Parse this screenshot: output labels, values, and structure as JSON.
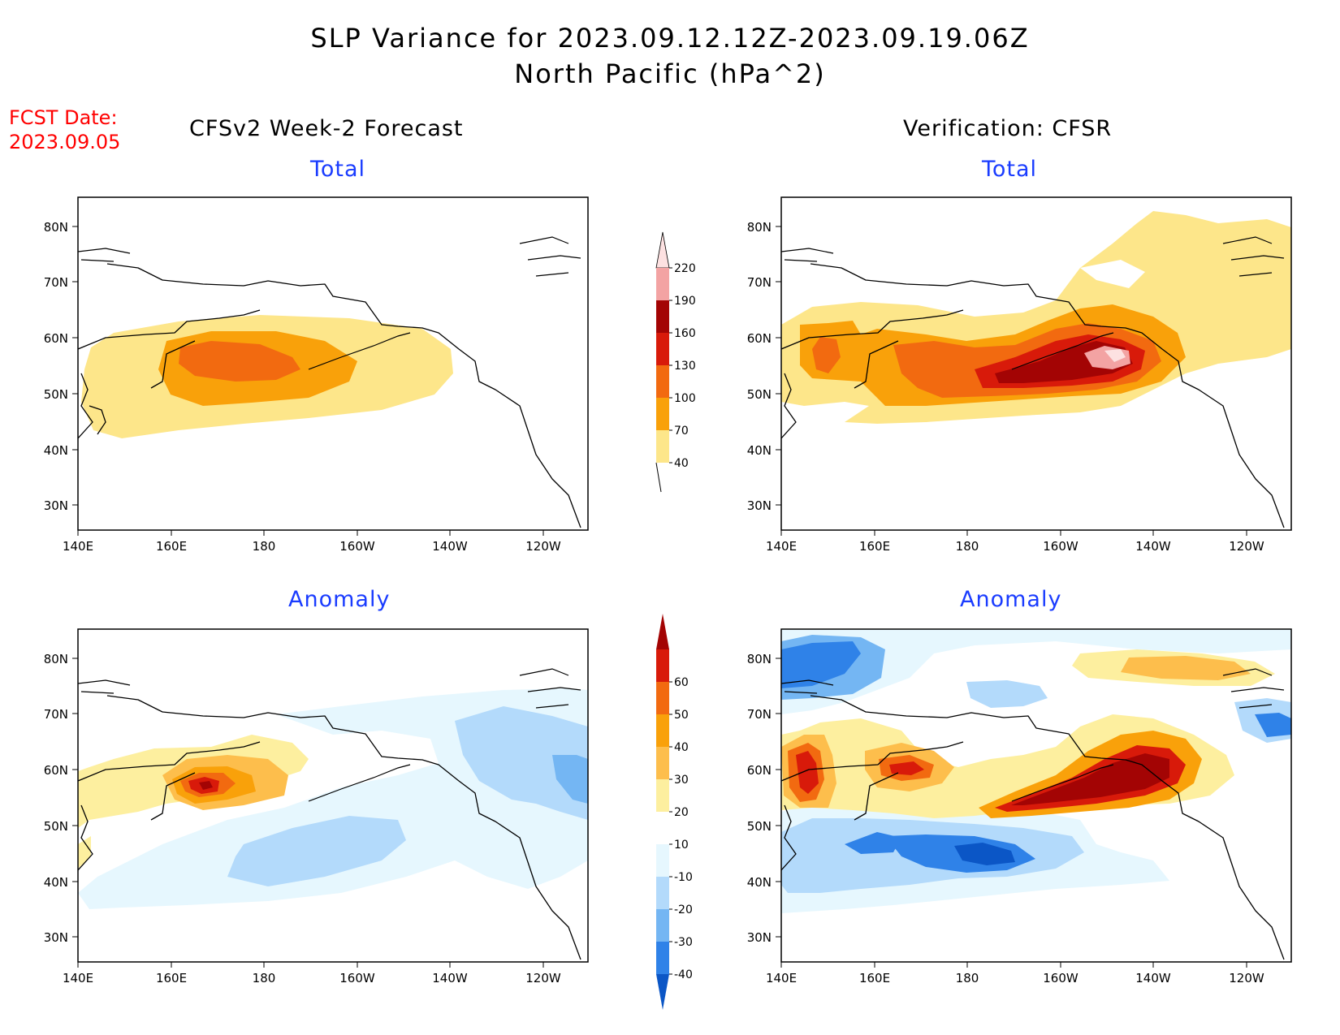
{
  "header": {
    "title_line1": "SLP Variance for 2023.09.12.12Z-2023.09.19.06Z",
    "title_line2": "North Pacific (hPa^2)",
    "fcst_date_label": "FCST Date:",
    "fcst_date_value": "2023.09.05"
  },
  "columns": {
    "left_title": "CFSv2 Week-2 Forecast",
    "right_title": "Verification: CFSR"
  },
  "panels": {
    "top_left_subtitle": "Total",
    "top_right_subtitle": "Total",
    "bottom_left_subtitle": "Anomaly",
    "bottom_right_subtitle": "Anomaly"
  },
  "axes": {
    "lat_labels": [
      "80N",
      "70N",
      "60N",
      "50N",
      "40N",
      "30N"
    ],
    "lon_labels": [
      "140E",
      "160E",
      "180",
      "160W",
      "140W",
      "120W"
    ]
  },
  "colorbars": {
    "total": {
      "levels": [
        "40",
        "70",
        "100",
        "130",
        "160",
        "190",
        "220"
      ],
      "colors": [
        "#fde68a",
        "#f9a10a",
        "#f26a10",
        "#d81a0a",
        "#a30404",
        "#f3a3a3",
        "#fde1e1"
      ]
    },
    "anomaly": {
      "levels": [
        "-40",
        "-30",
        "-20",
        "-10",
        "10",
        "20",
        "30",
        "40",
        "50",
        "60"
      ],
      "colors": [
        "#0b56c6",
        "#2f82e8",
        "#74b6f3",
        "#b3dafb",
        "#e6f7fe",
        "#ffffff",
        "#fdef9f",
        "#fdbe4c",
        "#f9a10a",
        "#f26a10",
        "#d81a0a",
        "#a30404"
      ]
    }
  }
}
